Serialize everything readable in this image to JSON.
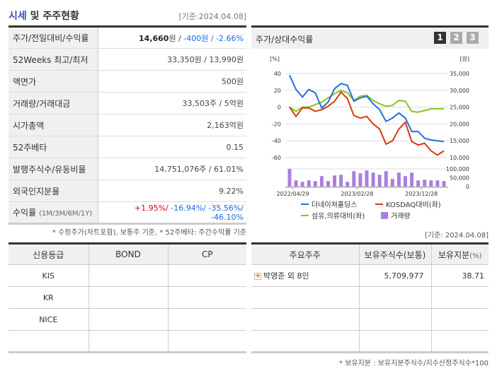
{
  "header": {
    "title_highlight": "시세",
    "title_rest": " 및 주주현황",
    "date": "[기준:2024.04.08]"
  },
  "summary": [
    {
      "label": "주가/전일대비/수익률",
      "price": "14,660",
      "unit": "원 / ",
      "change": "-400원 / -2.66%"
    },
    {
      "label": "52Weeks 최고/최저",
      "value": "33,350원 / 13,990원"
    },
    {
      "label": "액면가",
      "value": "500원"
    },
    {
      "label": "거래량/거래대금",
      "value": "33,503주 / 5억원"
    },
    {
      "label": "시가총액",
      "value": "2,163억원"
    },
    {
      "label": "52주베타",
      "value": "0.15"
    },
    {
      "label": "발행주식수/유동비율",
      "value": "14,751,076주 / 61.01%"
    },
    {
      "label": "외국인지분율",
      "value": "9.22%"
    },
    {
      "label": "수익률",
      "sublabel": "(1M/3M/6M/1Y)",
      "r1m": "+1.95%/",
      "rest": " -16.94%/ -35.56%/ -46.10%"
    }
  ],
  "summary_note": "* 수정주가(차트포함), 보통주 기준, * 52주베타: 주간수익률 기준",
  "chart_panel": {
    "title": "주가/상대수익률",
    "pages": [
      "1",
      "2",
      "3"
    ],
    "active_page": "1"
  },
  "chart_data": {
    "type": "line",
    "left_unit": "[%]",
    "right_unit": "[원]",
    "left_ticks": [
      40,
      20,
      0,
      -20,
      -40,
      -60
    ],
    "right_ticks": [
      "35,000",
      "30,000",
      "25,000",
      "20,000",
      "15,000",
      "10,000"
    ],
    "volume_ticks": [
      "100,000",
      "50,000",
      "0"
    ],
    "x_labels": [
      "2022/04/29",
      "2023/02/28",
      "2023/12/28"
    ],
    "ylim": [
      -60,
      40
    ],
    "volume_max": 100000,
    "series": [
      {
        "name": "더네이쳐홀딩스",
        "color": "#1f6fe0",
        "values": [
          38,
          21,
          12,
          21,
          17,
          -1,
          6,
          22,
          28,
          26,
          7,
          11,
          13,
          4,
          -3,
          -17,
          -13,
          -7,
          -13,
          -29,
          -29,
          -37,
          -39,
          -40,
          -41
        ]
      },
      {
        "name": "KOSDAQ대비(좌)",
        "color": "#d63a0a",
        "values": [
          0,
          -11,
          -1,
          -1,
          -5,
          -3,
          1,
          7,
          18,
          10,
          -10,
          -13,
          -11,
          -20,
          -26,
          -44,
          -40,
          -26,
          -18,
          -41,
          -45,
          -43,
          -52,
          -57,
          -52
        ]
      },
      {
        "name": "섬유,의류대비(좌)",
        "color": "#8cc21e",
        "values": [
          0,
          -5,
          0,
          0,
          3,
          6,
          11,
          16,
          20,
          17,
          8,
          13,
          14,
          8,
          4,
          1,
          2,
          8,
          7,
          -5,
          -6,
          -4,
          -2,
          -2,
          -2
        ]
      }
    ],
    "volume": {
      "name": "거래량",
      "color": "#a97fe0",
      "values": [
        100000,
        35000,
        27000,
        35000,
        31000,
        59000,
        31000,
        63000,
        67000,
        27000,
        87000,
        75000,
        91000,
        79000,
        67000,
        87000,
        43000,
        79000,
        59000,
        79000,
        35000,
        39000,
        35000,
        35000,
        31000
      ]
    }
  },
  "credit": {
    "headers": [
      "신용등급",
      "BOND",
      "CP"
    ],
    "rows": [
      [
        "KIS",
        "",
        ""
      ],
      [
        "KR",
        "",
        ""
      ],
      [
        "NICE",
        "",
        ""
      ],
      [
        "",
        "",
        ""
      ]
    ]
  },
  "holders": {
    "date": "[기준: 2024.04.08]",
    "headers": [
      "주요주주",
      "보유주식수(보통)",
      "보유지분"
    ],
    "pct_suffix": "(%)",
    "rows": [
      {
        "name": "박영준 외 8인",
        "shares": "5,709,977",
        "pct": "38.71"
      }
    ],
    "note": "* 보유지분 : 보유지분주식수/지수산정주식수*100"
  }
}
